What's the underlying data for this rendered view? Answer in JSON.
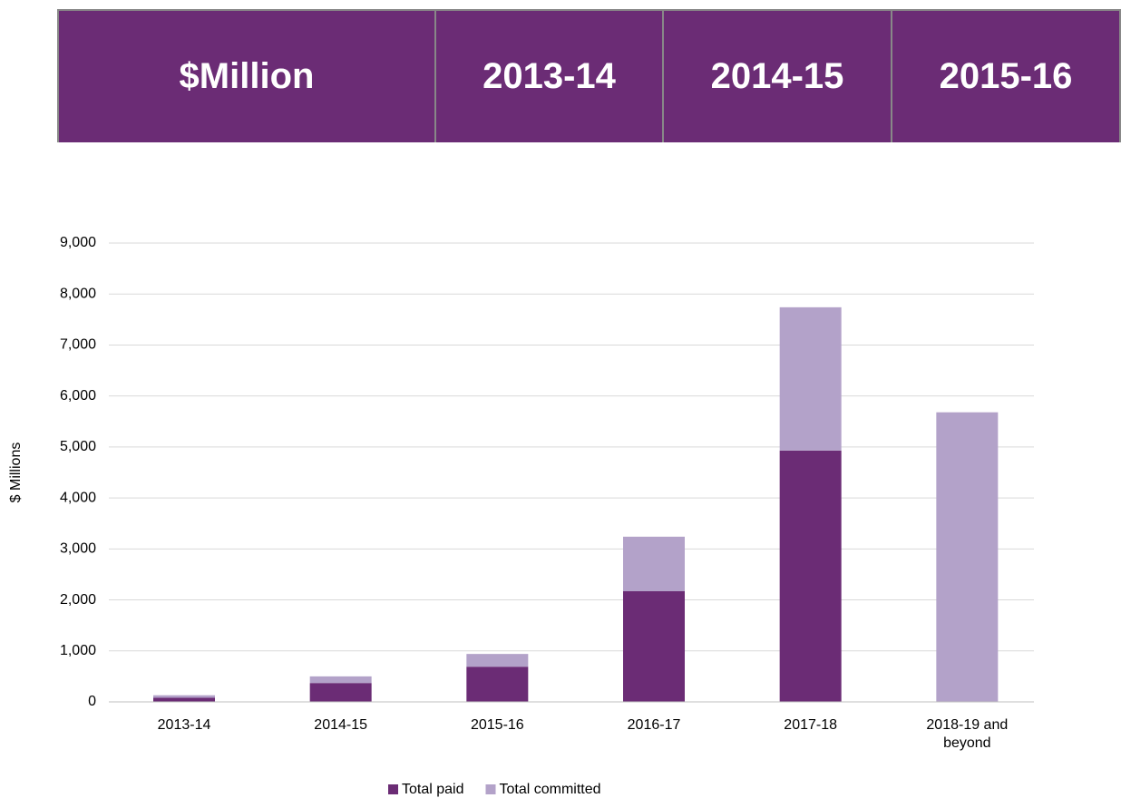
{
  "table": {
    "header": [
      "$Million",
      "2013-14",
      "2014-15",
      "2015-16"
    ]
  },
  "chart_data": {
    "type": "stacked_bar",
    "y_label": "$ Millions",
    "categories": [
      "2013-14",
      "2014-15",
      "2015-16",
      "2016-17",
      "2017-18",
      "2018-19 and beyond"
    ],
    "series": [
      {
        "name": "Total paid",
        "color": "#6b2c75",
        "values": [
          80,
          370,
          690,
          2170,
          4930,
          0
        ]
      },
      {
        "name": "Total committed",
        "color": "#b3a2c9",
        "values": [
          50,
          130,
          250,
          1070,
          2810,
          5680
        ]
      }
    ],
    "ylim": [
      0,
      9000
    ],
    "yticks": [
      0,
      {
        "value": 1000,
        "label": "1,000"
      },
      {
        "value": 2000,
        "label": "2,000"
      },
      {
        "value": 3000,
        "label": "3,000"
      },
      {
        "value": 4000,
        "label": "4,000"
      },
      {
        "value": 5000,
        "label": "5,000"
      },
      {
        "value": 6000,
        "label": "6,000"
      },
      {
        "value": 7000,
        "label": "7,000"
      },
      {
        "value": 8000,
        "label": "8,000"
      },
      {
        "value": 9000,
        "label": "9,000"
      }
    ],
    "grid": true,
    "legend": "bottom"
  }
}
